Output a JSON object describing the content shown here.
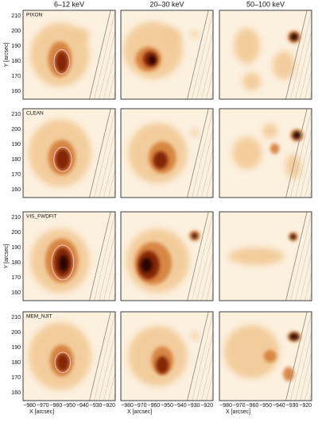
{
  "column_titles": [
    "6–12 keV",
    "20–30 keV",
    "50–100 keV"
  ],
  "rows": [
    {
      "method": "PIXON",
      "y_label": "Y [arcsec]"
    },
    {
      "method": "CLEAN"
    },
    {
      "method": "VIS_FWDFIT",
      "y_label": "Y [arcsec]"
    },
    {
      "method": "MEM_NJIT"
    }
  ],
  "y_ticks": [
    "210",
    "200",
    "190",
    "180",
    "170",
    "160"
  ],
  "x_ticks": [
    "−980",
    "−970",
    "−960",
    "−950",
    "−940",
    "−930",
    "−920"
  ],
  "x_label": "X [arcsec]"
}
